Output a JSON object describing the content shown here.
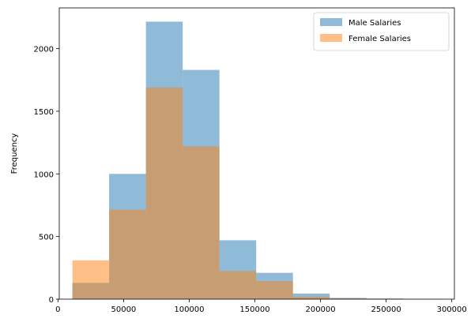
{
  "chart_data": {
    "type": "histogram",
    "title": "",
    "xlabel": "",
    "ylabel": "Frequency",
    "xlim": [
      1000,
      302000
    ],
    "ylim": [
      0,
      2325
    ],
    "x_ticks": [
      0,
      50000,
      100000,
      150000,
      200000,
      250000,
      300000
    ],
    "y_ticks": [
      0,
      500,
      1000,
      1500,
      2000
    ],
    "legend_position": "top-right",
    "grid": false,
    "series": [
      {
        "name": "Male Salaries",
        "color": "#1f77b4",
        "opacity": 0.5,
        "bin_edges": [
          11000,
          39000,
          67000,
          95000,
          123000,
          151000,
          179000,
          207000,
          235000,
          263000,
          291000
        ],
        "counts": [
          130,
          1000,
          2215,
          1830,
          470,
          210,
          45,
          10,
          5,
          2
        ]
      },
      {
        "name": "Female Salaries",
        "color": "#ff7f0e",
        "opacity": 0.5,
        "bin_edges": [
          11000,
          39000,
          67000,
          95000,
          123000,
          151000,
          179000,
          207000,
          235000,
          263000,
          291000
        ],
        "counts": [
          310,
          715,
          1690,
          1220,
          225,
          145,
          20,
          5,
          2,
          0
        ]
      }
    ]
  }
}
